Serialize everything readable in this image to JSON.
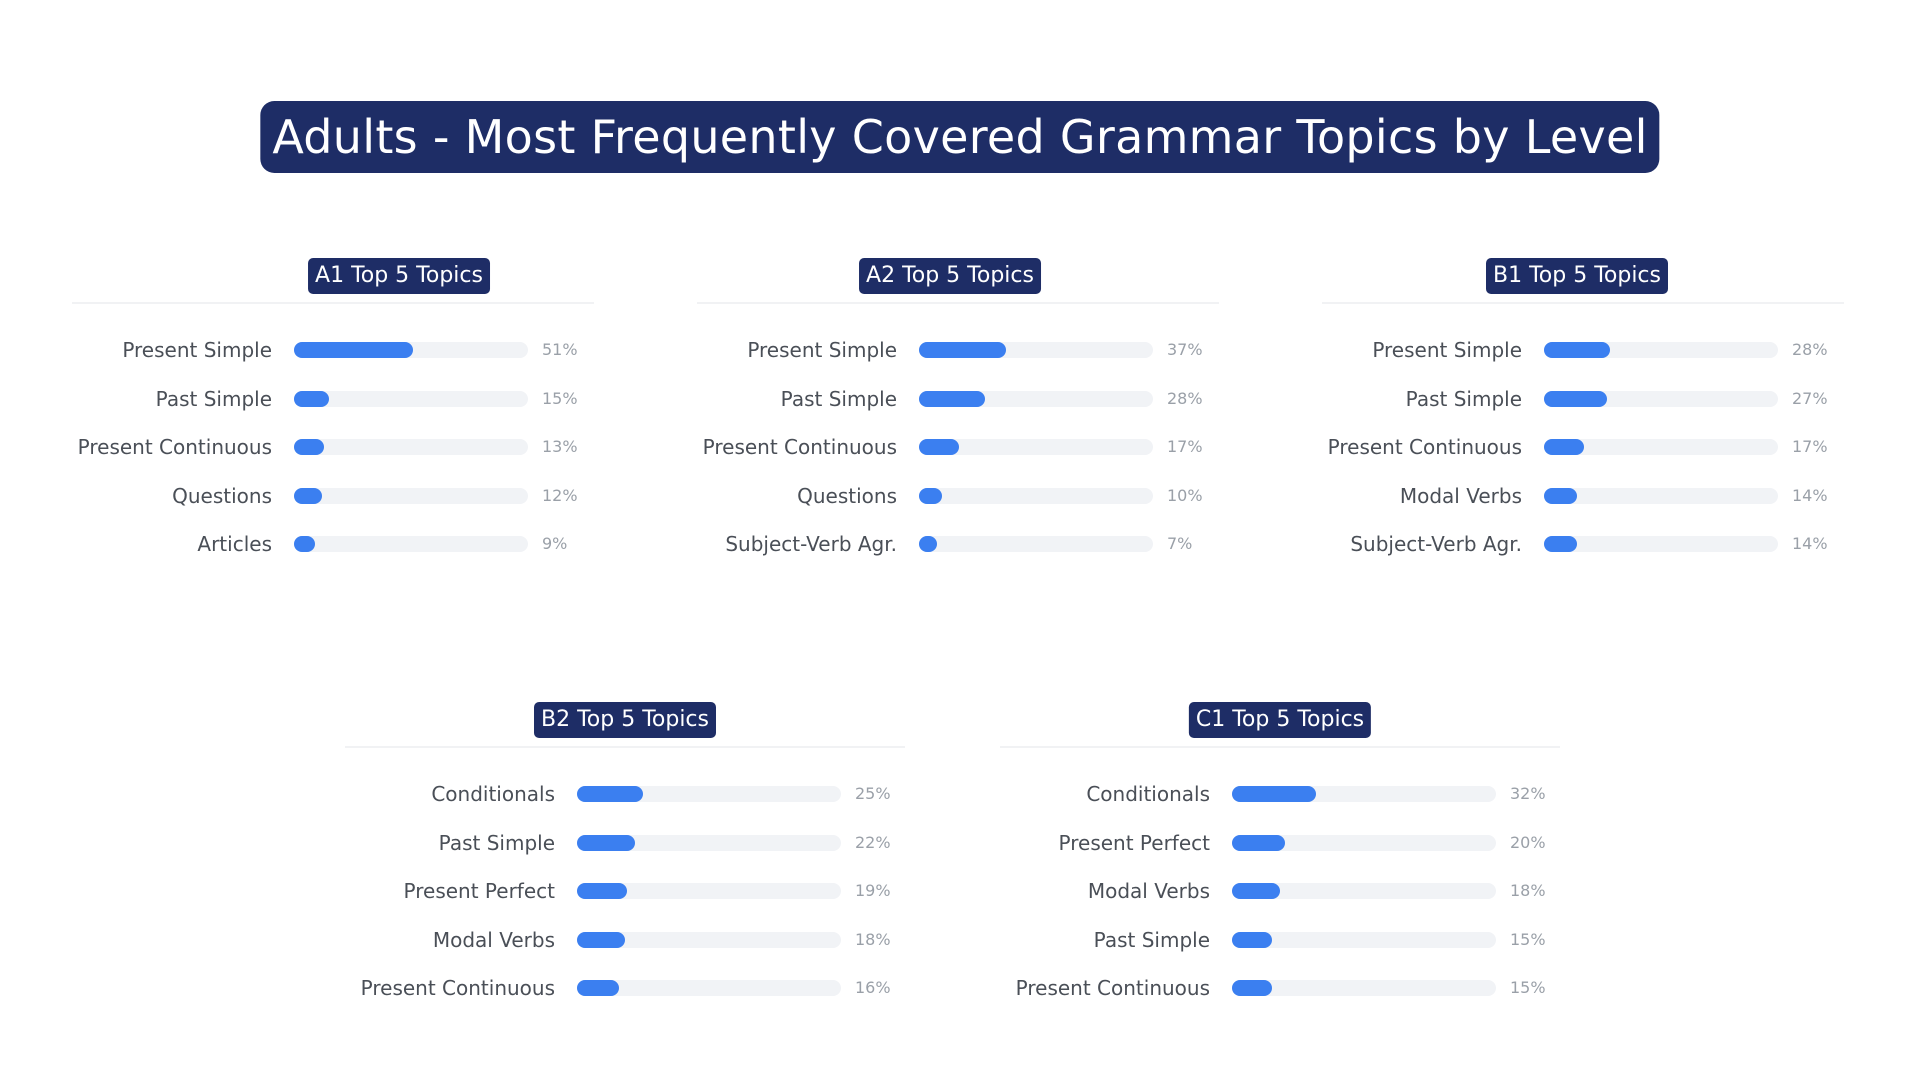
{
  "title": "Adults - Most Frequently Covered Grammar Topics by Level",
  "colors": {
    "title_bg": "#1e2d66",
    "bar": "#3b7ff0",
    "track": "#f1f3f6"
  },
  "chart_data": [
    {
      "type": "bar",
      "orientation": "horizontal",
      "title": "A1 Top 5 Topics",
      "categories": [
        "Present Simple",
        "Past Simple",
        "Present Continuous",
        "Questions",
        "Articles"
      ],
      "values": [
        51,
        15,
        13,
        12,
        9
      ],
      "value_labels": [
        "51%",
        "15%",
        "13%",
        "12%",
        "9%"
      ],
      "xlim": [
        0,
        100
      ]
    },
    {
      "type": "bar",
      "orientation": "horizontal",
      "title": "A2 Top 5 Topics",
      "categories": [
        "Present Simple",
        "Past Simple",
        "Present Continuous",
        "Questions",
        "Subject-Verb Agr."
      ],
      "values": [
        37,
        28,
        17,
        10,
        7
      ],
      "value_labels": [
        "37%",
        "28%",
        "17%",
        "10%",
        "7%"
      ],
      "xlim": [
        0,
        100
      ]
    },
    {
      "type": "bar",
      "orientation": "horizontal",
      "title": "B1 Top 5 Topics",
      "categories": [
        "Present Simple",
        "Past Simple",
        "Present Continuous",
        "Modal Verbs",
        "Subject-Verb Agr."
      ],
      "values": [
        28,
        27,
        17,
        14,
        14
      ],
      "value_labels": [
        "28%",
        "27%",
        "17%",
        "14%",
        "14%"
      ],
      "xlim": [
        0,
        100
      ]
    },
    {
      "type": "bar",
      "orientation": "horizontal",
      "title": "B2 Top 5 Topics",
      "categories": [
        "Conditionals",
        "Past Simple",
        "Present Perfect",
        "Modal Verbs",
        "Present Continuous"
      ],
      "values": [
        25,
        22,
        19,
        18,
        16
      ],
      "value_labels": [
        "25%",
        "22%",
        "19%",
        "18%",
        "16%"
      ],
      "xlim": [
        0,
        100
      ]
    },
    {
      "type": "bar",
      "orientation": "horizontal",
      "title": "C1 Top 5 Topics",
      "categories": [
        "Conditionals",
        "Present Perfect",
        "Modal Verbs",
        "Past Simple",
        "Present Continuous"
      ],
      "values": [
        32,
        20,
        18,
        15,
        15
      ],
      "value_labels": [
        "32%",
        "20%",
        "18%",
        "15%",
        "15%"
      ],
      "xlim": [
        0,
        100
      ]
    }
  ]
}
